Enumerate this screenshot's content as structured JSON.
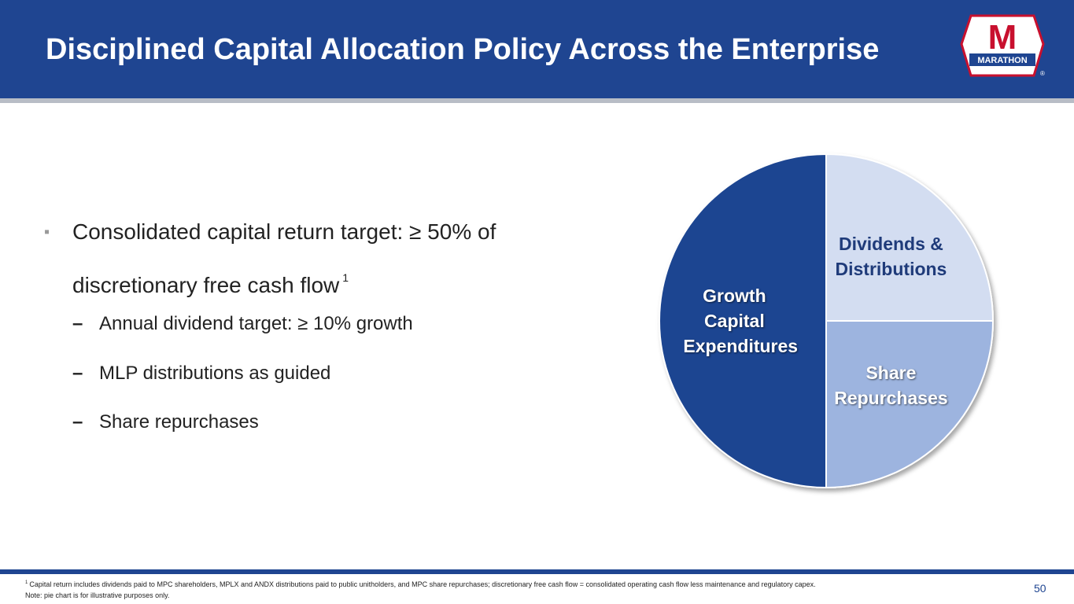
{
  "header": {
    "title": "Disciplined Capital Allocation Policy Across the Enterprise",
    "logo_letter": "M",
    "logo_text": "MARATHON",
    "logo_mark": "®"
  },
  "bullets": {
    "main": "Consolidated capital return target: ≥ 50% of discretionary free cash flow",
    "main_note": "1",
    "sub": [
      "Annual dividend target: ≥ 10% growth",
      "MLP distributions as guided",
      "Share repurchases"
    ]
  },
  "chart_data": {
    "type": "pie",
    "categories": [
      "Dividends & Distributions",
      "Share Repurchases",
      "Growth Capital Expenditures"
    ],
    "values": [
      25,
      25,
      50
    ],
    "colors": [
      "#d3ddf1",
      "#9db4df",
      "#1f4591"
    ]
  },
  "footer": {
    "note_marker": "1",
    "note": "Capital return includes dividends paid to MPC shareholders, MPLX and ANDX distributions paid to public unitholders, and MPC share repurchases; discretionary free cash flow = consolidated operating cash flow less maintenance and regulatory capex.",
    "illustrative": "Note: pie chart is for illustrative purposes only.",
    "page": "50"
  }
}
